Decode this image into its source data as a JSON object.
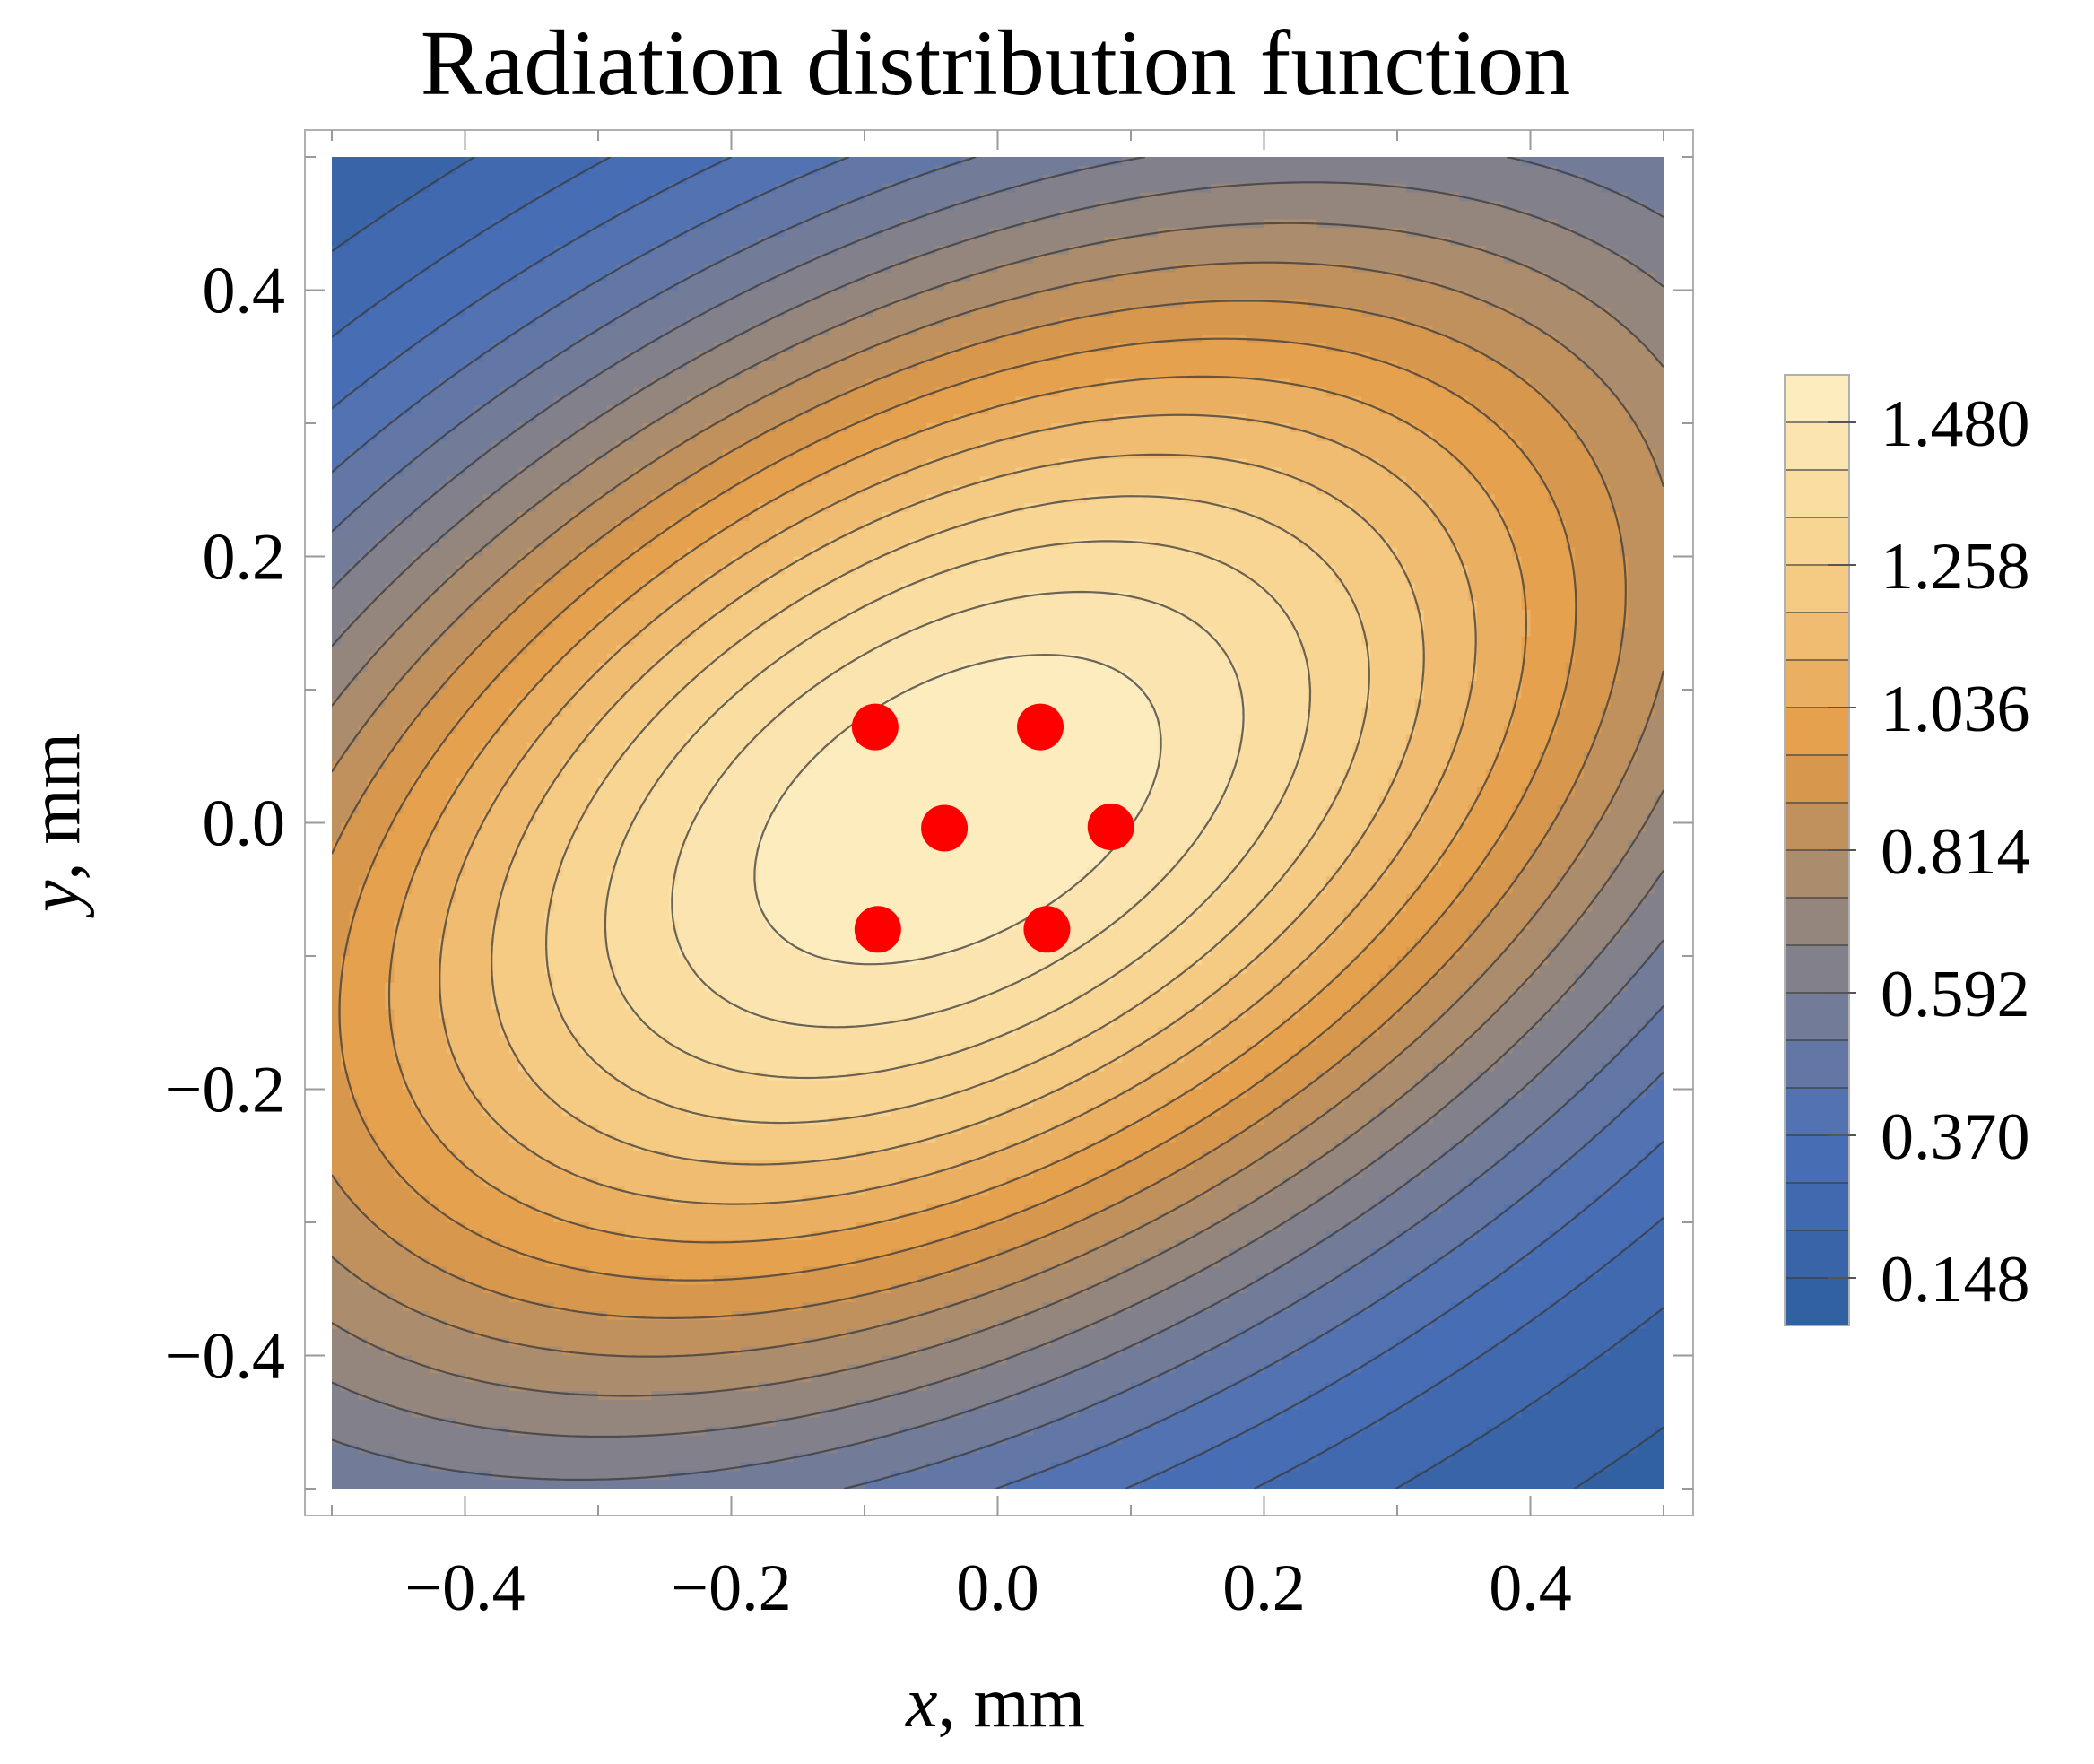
{
  "chart_data": {
    "type": "contour",
    "title": "Radiation distribution function",
    "xlabel_var": "x",
    "xlabel_unit": ", mm",
    "ylabel_var": "y",
    "ylabel_unit": ", mm",
    "xlim": [
      -0.5,
      0.5
    ],
    "ylim": [
      -0.5,
      0.5
    ],
    "x_ticks": [
      -0.4,
      -0.2,
      0.0,
      0.2,
      0.4
    ],
    "y_ticks": [
      -0.4,
      -0.2,
      0.0,
      0.2,
      0.4
    ],
    "x_tick_labels": [
      "−0.4",
      "−0.2",
      "0.0",
      "0.2",
      "0.4"
    ],
    "y_tick_labels": [
      "−0.4",
      "−0.2",
      "0.0",
      "0.2",
      "0.4"
    ],
    "colorbar": {
      "range": [
        0.074,
        1.554
      ],
      "ticks": [
        0.148,
        0.37,
        0.592,
        0.814,
        1.036,
        1.258,
        1.48
      ],
      "tick_labels": [
        "0.148",
        "0.370",
        "0.592",
        "0.814",
        "1.036",
        "1.258",
        "1.480"
      ],
      "colors": [
        "#2f5f9f",
        "#4a6fb8",
        "#8a8385",
        "#e29a45",
        "#f8d18c",
        "#fdf0c5"
      ]
    },
    "contour_levels": [
      0.074,
      0.148,
      0.222,
      0.296,
      0.37,
      0.444,
      0.518,
      0.592,
      0.666,
      0.74,
      0.814,
      0.888,
      0.962,
      1.036,
      1.11,
      1.184,
      1.258,
      1.332,
      1.406,
      1.48
    ],
    "points": [
      {
        "x": -0.092,
        "y": 0.072
      },
      {
        "x": 0.032,
        "y": 0.072
      },
      {
        "x": -0.04,
        "y": -0.004
      },
      {
        "x": 0.085,
        "y": -0.003
      },
      {
        "x": -0.09,
        "y": -0.08
      },
      {
        "x": 0.037,
        "y": -0.08
      }
    ],
    "point_color": "#ff0000"
  }
}
